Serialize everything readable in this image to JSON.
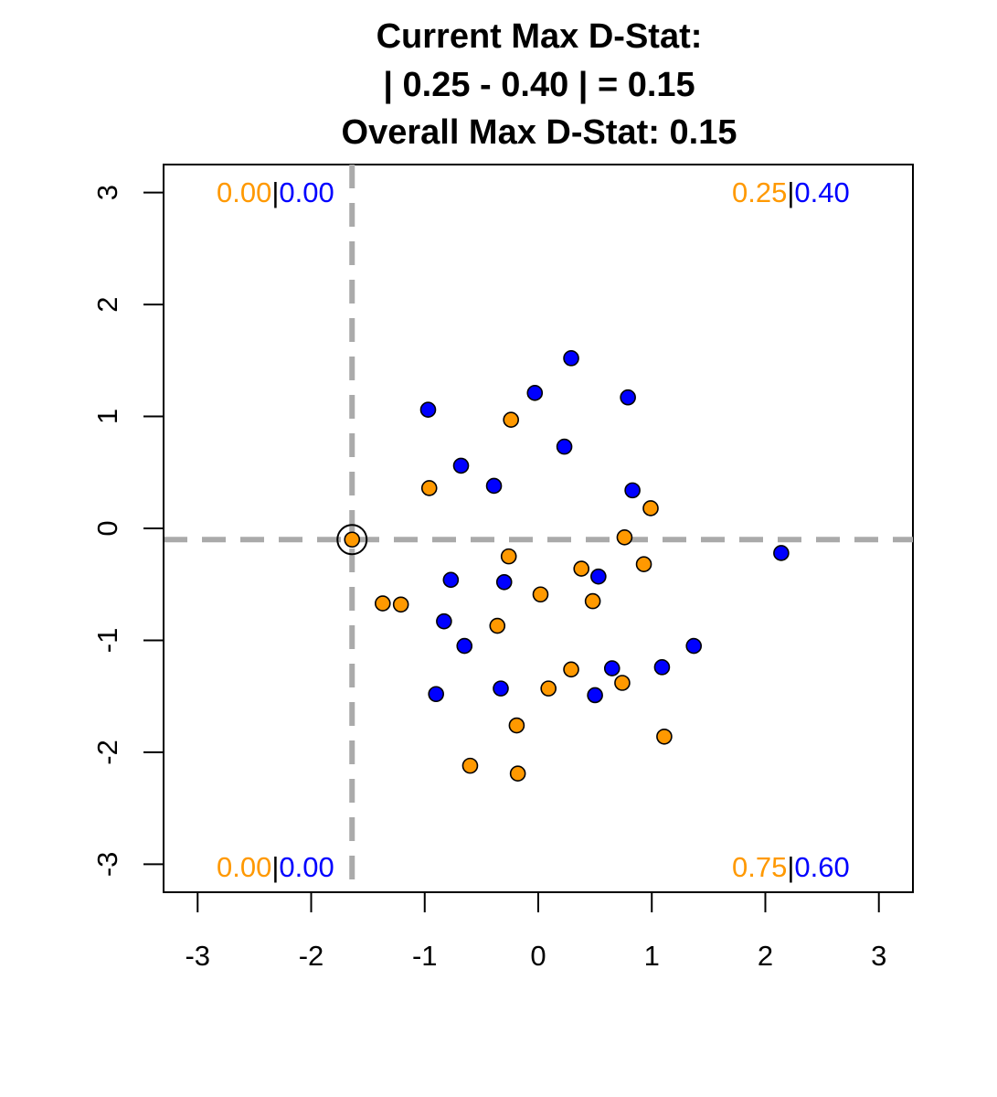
{
  "chart_data": {
    "type": "scatter",
    "title_lines": [
      "Current Max D-Stat:",
      "| 0.25 - 0.40 | = 0.15",
      "Overall Max D-Stat: 0.15"
    ],
    "xlabel": "",
    "ylabel": "",
    "xlim": [
      -3.3,
      3.3
    ],
    "ylim": [
      -3.25,
      3.25
    ],
    "x_ticks": [
      -3,
      -2,
      -1,
      0,
      1,
      2,
      3
    ],
    "y_ticks": [
      -3,
      -2,
      -1,
      0,
      1,
      2,
      3
    ],
    "x_tick_labels": [
      "-3",
      "-2",
      "-1",
      "0",
      "1",
      "2",
      "3"
    ],
    "y_tick_labels": [
      "-3",
      "-2",
      "-1",
      "0",
      "1",
      "2",
      "3"
    ],
    "grid": false,
    "colors": {
      "orange": "#FF9900",
      "blue": "#0000FF",
      "divider": "#AAAAAA"
    },
    "divider": {
      "x": -1.64,
      "y": -0.1
    },
    "highlight_point": {
      "x": -1.64,
      "y": -0.1
    },
    "corner_labels": {
      "top_left": {
        "orange": "0.00",
        "sep": "|",
        "blue": "0.00"
      },
      "top_right": {
        "orange": "0.25",
        "sep": "|",
        "blue": "0.40"
      },
      "bottom_left": {
        "orange": "0.00",
        "sep": "|",
        "blue": "0.00"
      },
      "bottom_right": {
        "orange": "0.75",
        "sep": "|",
        "blue": "0.60"
      }
    },
    "series": [
      {
        "color": "#FF9900",
        "points": [
          [
            -1.64,
            -0.1
          ],
          [
            -1.37,
            -0.67
          ],
          [
            -1.21,
            -0.68
          ],
          [
            -0.96,
            0.36
          ],
          [
            -0.24,
            0.97
          ],
          [
            -0.26,
            -0.25
          ],
          [
            0.02,
            -0.59
          ],
          [
            -0.36,
            -0.87
          ],
          [
            0.38,
            -0.36
          ],
          [
            0.48,
            -0.65
          ],
          [
            0.76,
            -0.08
          ],
          [
            0.99,
            0.18
          ],
          [
            0.93,
            -0.32
          ],
          [
            0.29,
            -1.26
          ],
          [
            0.09,
            -1.43
          ],
          [
            0.74,
            -1.38
          ],
          [
            -0.19,
            -1.76
          ],
          [
            -0.6,
            -2.12
          ],
          [
            -0.18,
            -2.19
          ],
          [
            1.11,
            -1.86
          ]
        ]
      },
      {
        "color": "#0000FF",
        "points": [
          [
            -0.97,
            1.06
          ],
          [
            -0.68,
            0.56
          ],
          [
            -0.39,
            0.38
          ],
          [
            -0.03,
            1.21
          ],
          [
            0.29,
            1.52
          ],
          [
            0.23,
            0.73
          ],
          [
            0.79,
            1.17
          ],
          [
            0.83,
            0.34
          ],
          [
            2.14,
            -0.22
          ],
          [
            -0.77,
            -0.46
          ],
          [
            -0.3,
            -0.48
          ],
          [
            0.53,
            -0.43
          ],
          [
            -0.83,
            -0.83
          ],
          [
            -0.65,
            -1.05
          ],
          [
            -0.9,
            -1.48
          ],
          [
            -0.33,
            -1.43
          ],
          [
            0.65,
            -1.25
          ],
          [
            0.5,
            -1.49
          ],
          [
            1.09,
            -1.24
          ],
          [
            1.37,
            -1.05
          ]
        ]
      }
    ]
  }
}
